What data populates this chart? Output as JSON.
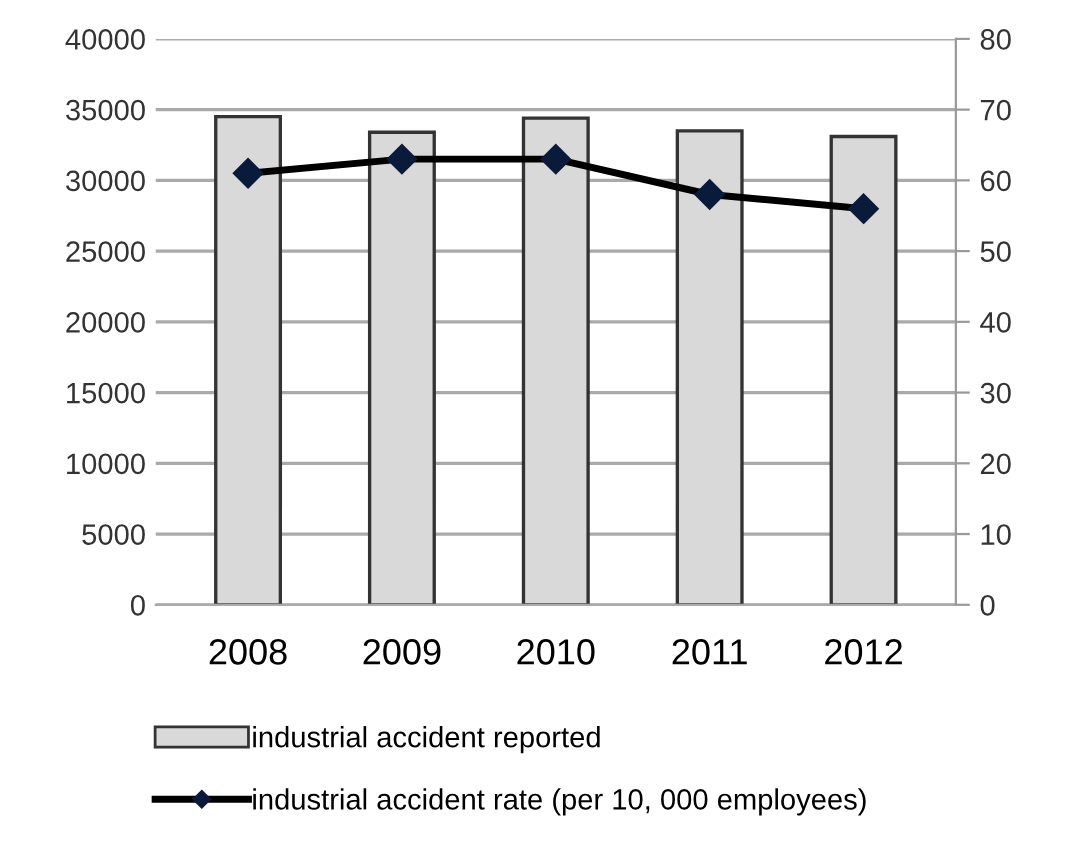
{
  "chart_data": {
    "type": "bar",
    "categories": [
      "2008",
      "2009",
      "2010",
      "2011",
      "2012"
    ],
    "series": [
      {
        "name": "industrial accident reported",
        "color": "#d9d9d9",
        "values": [
          34500,
          33400,
          34400,
          33500,
          33100
        ]
      },
      {
        "name": "industrial accident rate (per 10, 000 employees)",
        "type": "line",
        "axis": "y2",
        "color": "#000000",
        "marker": "diamond",
        "values": [
          61,
          63,
          63,
          58,
          56
        ]
      }
    ],
    "ylim": [
      0,
      40000
    ],
    "yticks": [
      0,
      5000,
      10000,
      15000,
      20000,
      25000,
      30000,
      35000,
      40000
    ],
    "y2lim": [
      0,
      80
    ],
    "y2ticks": [
      0,
      10,
      20,
      30,
      40,
      50,
      60,
      70,
      80
    ],
    "grid": "y",
    "legend": "bottom"
  }
}
